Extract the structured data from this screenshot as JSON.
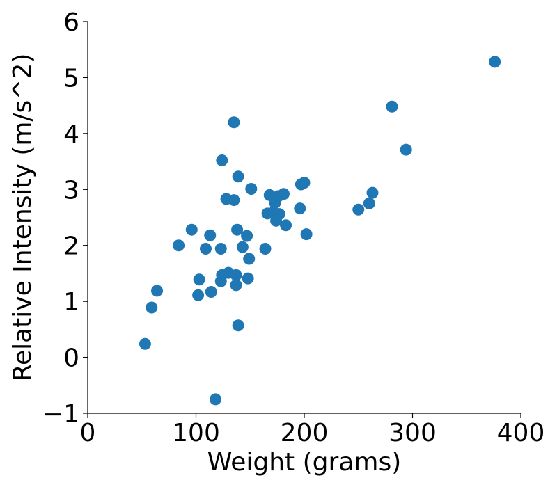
{
  "chart_data": {
    "type": "scatter",
    "title": "",
    "xlabel": "Weight (grams)",
    "ylabel": "Relative Intensity (m/s^2)",
    "xlim": [
      0,
      400
    ],
    "ylim": [
      -1,
      6
    ],
    "xticks": [
      "0",
      "100",
      "200",
      "300",
      "400"
    ],
    "yticks": [
      "−1",
      "0",
      "1",
      "2",
      "3",
      "4",
      "5",
      "6"
    ],
    "grid": false,
    "marker_color": "#1f77b4",
    "points": [
      {
        "x": 53,
        "y": 0.24
      },
      {
        "x": 59,
        "y": 0.89
      },
      {
        "x": 64,
        "y": 1.19
      },
      {
        "x": 84,
        "y": 2.0
      },
      {
        "x": 96,
        "y": 2.28
      },
      {
        "x": 102,
        "y": 1.11
      },
      {
        "x": 103,
        "y": 1.39
      },
      {
        "x": 109,
        "y": 1.94
      },
      {
        "x": 113,
        "y": 2.18
      },
      {
        "x": 114,
        "y": 1.17
      },
      {
        "x": 118,
        "y": -0.75
      },
      {
        "x": 123,
        "y": 1.94
      },
      {
        "x": 123,
        "y": 1.36
      },
      {
        "x": 124,
        "y": 1.47
      },
      {
        "x": 124,
        "y": 3.52
      },
      {
        "x": 128,
        "y": 2.83
      },
      {
        "x": 130,
        "y": 1.51
      },
      {
        "x": 135,
        "y": 4.2
      },
      {
        "x": 135,
        "y": 2.81
      },
      {
        "x": 137,
        "y": 1.47
      },
      {
        "x": 137,
        "y": 1.29
      },
      {
        "x": 138,
        "y": 2.28
      },
      {
        "x": 139,
        "y": 3.23
      },
      {
        "x": 139,
        "y": 0.57
      },
      {
        "x": 143,
        "y": 1.97
      },
      {
        "x": 147,
        "y": 2.17
      },
      {
        "x": 148,
        "y": 1.41
      },
      {
        "x": 149,
        "y": 1.76
      },
      {
        "x": 151,
        "y": 3.01
      },
      {
        "x": 164,
        "y": 1.94
      },
      {
        "x": 166,
        "y": 2.57
      },
      {
        "x": 168,
        "y": 2.9
      },
      {
        "x": 172,
        "y": 2.6
      },
      {
        "x": 173,
        "y": 2.76
      },
      {
        "x": 174,
        "y": 2.44
      },
      {
        "x": 176,
        "y": 2.88
      },
      {
        "x": 177,
        "y": 2.56
      },
      {
        "x": 181,
        "y": 2.92
      },
      {
        "x": 183,
        "y": 2.36
      },
      {
        "x": 196,
        "y": 2.66
      },
      {
        "x": 197,
        "y": 3.09
      },
      {
        "x": 200,
        "y": 3.12
      },
      {
        "x": 202,
        "y": 2.2
      },
      {
        "x": 250,
        "y": 2.64
      },
      {
        "x": 260,
        "y": 2.75
      },
      {
        "x": 263,
        "y": 2.94
      },
      {
        "x": 281,
        "y": 4.48
      },
      {
        "x": 294,
        "y": 3.71
      },
      {
        "x": 376,
        "y": 5.28
      }
    ]
  }
}
